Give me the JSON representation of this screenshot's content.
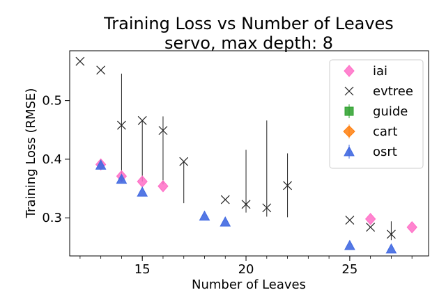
{
  "chart_data": {
    "type": "scatter",
    "title": "Training Loss vs Number of Leaves",
    "subtitle": "servo, max depth: 8",
    "xlabel": "Number of Leaves",
    "ylabel": "Training Loss (RMSE)",
    "xlim": [
      11.5,
      28.8
    ],
    "ylim": [
      0.235,
      0.585
    ],
    "xticks": [
      15,
      20,
      25
    ],
    "xticks_minor": [
      12,
      13,
      14,
      15,
      16,
      17,
      18,
      19,
      20,
      21,
      22,
      23,
      24,
      25,
      26,
      27,
      28
    ],
    "yticks": [
      0.3,
      0.4,
      0.5
    ],
    "legend": "top-right",
    "series": [
      {
        "name": "iai",
        "marker": "thin-diamond",
        "color": "#ff6ec7",
        "points": [
          {
            "x": 13,
            "y": 0.391
          },
          {
            "x": 14,
            "y": 0.371
          },
          {
            "x": 15,
            "y": 0.362
          },
          {
            "x": 16,
            "y": 0.354
          },
          {
            "x": 26,
            "y": 0.298
          },
          {
            "x": 28,
            "y": 0.284
          }
        ]
      },
      {
        "name": "evtree",
        "marker": "x",
        "color": "#222222",
        "points": [
          {
            "x": 12,
            "y": 0.567
          },
          {
            "x": 13,
            "y": 0.552
          },
          {
            "x": 14,
            "y": 0.458,
            "ylow": 0.362,
            "yhigh": 0.546
          },
          {
            "x": 15,
            "y": 0.466,
            "ylow": 0.362,
            "yhigh": 0.467
          },
          {
            "x": 16,
            "y": 0.449,
            "ylow": 0.357,
            "yhigh": 0.473
          },
          {
            "x": 17,
            "y": 0.396,
            "ylow": 0.325,
            "yhigh": 0.396
          },
          {
            "x": 19,
            "y": 0.331
          },
          {
            "x": 20,
            "y": 0.323,
            "ylow": 0.309,
            "yhigh": 0.416
          },
          {
            "x": 21,
            "y": 0.317,
            "ylow": 0.302,
            "yhigh": 0.466
          },
          {
            "x": 22,
            "y": 0.355,
            "ylow": 0.301,
            "yhigh": 0.41
          },
          {
            "x": 25,
            "y": 0.296
          },
          {
            "x": 26,
            "y": 0.284
          },
          {
            "x": 27,
            "y": 0.272,
            "ylow": 0.262,
            "yhigh": 0.294
          }
        ]
      },
      {
        "name": "guide",
        "marker": "square",
        "color": "#2ca02c",
        "points": []
      },
      {
        "name": "cart",
        "marker": "diamond",
        "color": "#ff7f0e",
        "points": []
      },
      {
        "name": "osrt",
        "marker": "triangle",
        "color": "#4169e1",
        "points": [
          {
            "x": 13,
            "y": 0.39
          },
          {
            "x": 14,
            "y": 0.366
          },
          {
            "x": 15,
            "y": 0.344
          },
          {
            "x": 18,
            "y": 0.303
          },
          {
            "x": 19,
            "y": 0.293
          },
          {
            "x": 25,
            "y": 0.253
          },
          {
            "x": 27,
            "y": 0.247
          }
        ]
      }
    ]
  }
}
